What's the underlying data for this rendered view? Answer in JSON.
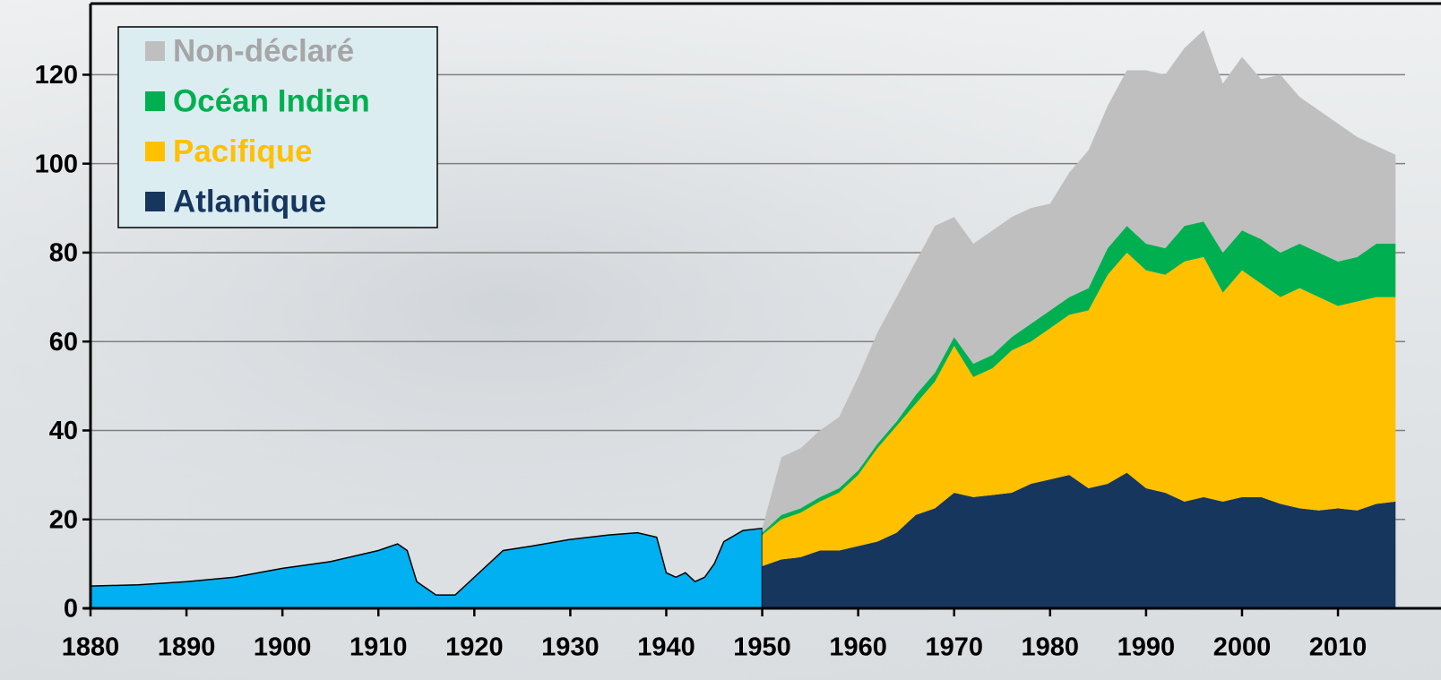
{
  "chart_data": {
    "type": "area",
    "x": [
      1880,
      1885,
      1890,
      1895,
      1900,
      1905,
      1910,
      1912,
      1913,
      1914,
      1916,
      1918,
      1920,
      1923,
      1926,
      1930,
      1934,
      1937,
      1939,
      1940,
      1941,
      1942,
      1943,
      1944,
      1945,
      1946,
      1948,
      1950,
      1952,
      1954,
      1956,
      1958,
      1960,
      1962,
      1964,
      1966,
      1968,
      1970,
      1972,
      1974,
      1976,
      1978,
      1980,
      1982,
      1984,
      1986,
      1988,
      1990,
      1992,
      1994,
      1996,
      1998,
      2000,
      2002,
      2004,
      2006,
      2008,
      2010,
      2012,
      2014,
      2016
    ],
    "series": [
      {
        "color": "#00b0f0",
        "values": [
          5,
          5.3,
          6,
          7,
          9,
          10.5,
          13,
          14.5,
          13,
          6,
          3,
          3,
          7,
          13,
          14,
          15.5,
          16.5,
          17,
          16,
          8,
          7,
          8,
          6,
          7,
          10,
          15,
          17.5,
          18,
          null,
          null,
          null,
          null,
          null,
          null,
          null,
          null,
          null,
          null,
          null,
          null,
          null,
          null,
          null,
          null,
          null,
          null,
          null,
          null,
          null,
          null,
          null,
          null,
          null,
          null,
          null,
          null,
          null,
          null,
          null,
          null,
          null
        ]
      },
      {
        "name": "Atlantique",
        "color": "#17365d",
        "values": [
          null,
          null,
          null,
          null,
          null,
          null,
          null,
          null,
          null,
          null,
          null,
          null,
          null,
          null,
          null,
          null,
          null,
          null,
          null,
          null,
          null,
          null,
          null,
          null,
          null,
          null,
          null,
          9.5,
          11,
          11.5,
          13,
          13,
          14,
          15,
          17,
          21,
          22.5,
          26,
          25,
          25.5,
          26,
          28,
          29,
          30,
          27,
          28,
          30.5,
          27,
          26,
          24,
          25,
          24,
          25,
          25,
          23.5,
          22.5,
          22,
          22.5,
          22,
          23.5,
          24
        ]
      },
      {
        "name": "Pacifique",
        "color": "#ffc000",
        "values": [
          null,
          null,
          null,
          null,
          null,
          null,
          null,
          null,
          null,
          null,
          null,
          null,
          null,
          null,
          null,
          null,
          null,
          null,
          null,
          null,
          null,
          null,
          null,
          null,
          null,
          null,
          null,
          7,
          9,
          10,
          11,
          13,
          16,
          21,
          24,
          25,
          28.5,
          33,
          27,
          28.5,
          32,
          32,
          34,
          36,
          40,
          47,
          49.5,
          49,
          49,
          54,
          54,
          47,
          51,
          48,
          46.5,
          49.5,
          48,
          45.5,
          47,
          46.5,
          46
        ]
      },
      {
        "name": "Océan Indien",
        "color": "#00b050",
        "values": [
          null,
          null,
          null,
          null,
          null,
          null,
          null,
          null,
          null,
          null,
          null,
          null,
          null,
          null,
          null,
          null,
          null,
          null,
          null,
          null,
          null,
          null,
          null,
          null,
          null,
          null,
          null,
          0.5,
          1,
          1,
          1,
          1,
          1,
          1,
          1,
          2,
          2,
          2,
          3,
          3,
          3,
          4,
          4,
          4,
          5,
          6,
          6,
          6,
          6,
          8,
          8,
          9,
          9,
          10,
          10,
          10,
          10,
          10,
          10,
          12,
          12
        ]
      },
      {
        "name": "Non-déclaré",
        "color": "#bfbfbf",
        "values": [
          null,
          null,
          null,
          null,
          null,
          null,
          null,
          null,
          null,
          null,
          null,
          null,
          null,
          null,
          null,
          null,
          null,
          null,
          null,
          null,
          null,
          null,
          null,
          null,
          null,
          null,
          null,
          1,
          13,
          13.5,
          15,
          16,
          21,
          25,
          28,
          30,
          33,
          27,
          27,
          28,
          27,
          26,
          24,
          28,
          31,
          32,
          35,
          39,
          39,
          40,
          43,
          38,
          39,
          36,
          40,
          33,
          32,
          31,
          27,
          22,
          20
        ]
      }
    ],
    "xlim": [
      1880,
      2017
    ],
    "xticks": [
      1880,
      1890,
      1900,
      1910,
      1920,
      1930,
      1940,
      1950,
      1960,
      1970,
      1980,
      1990,
      2000,
      2010
    ],
    "ylim": [
      0,
      136
    ],
    "yticks": [
      0,
      20,
      40,
      60,
      80,
      100,
      120
    ],
    "grid": true
  }
}
